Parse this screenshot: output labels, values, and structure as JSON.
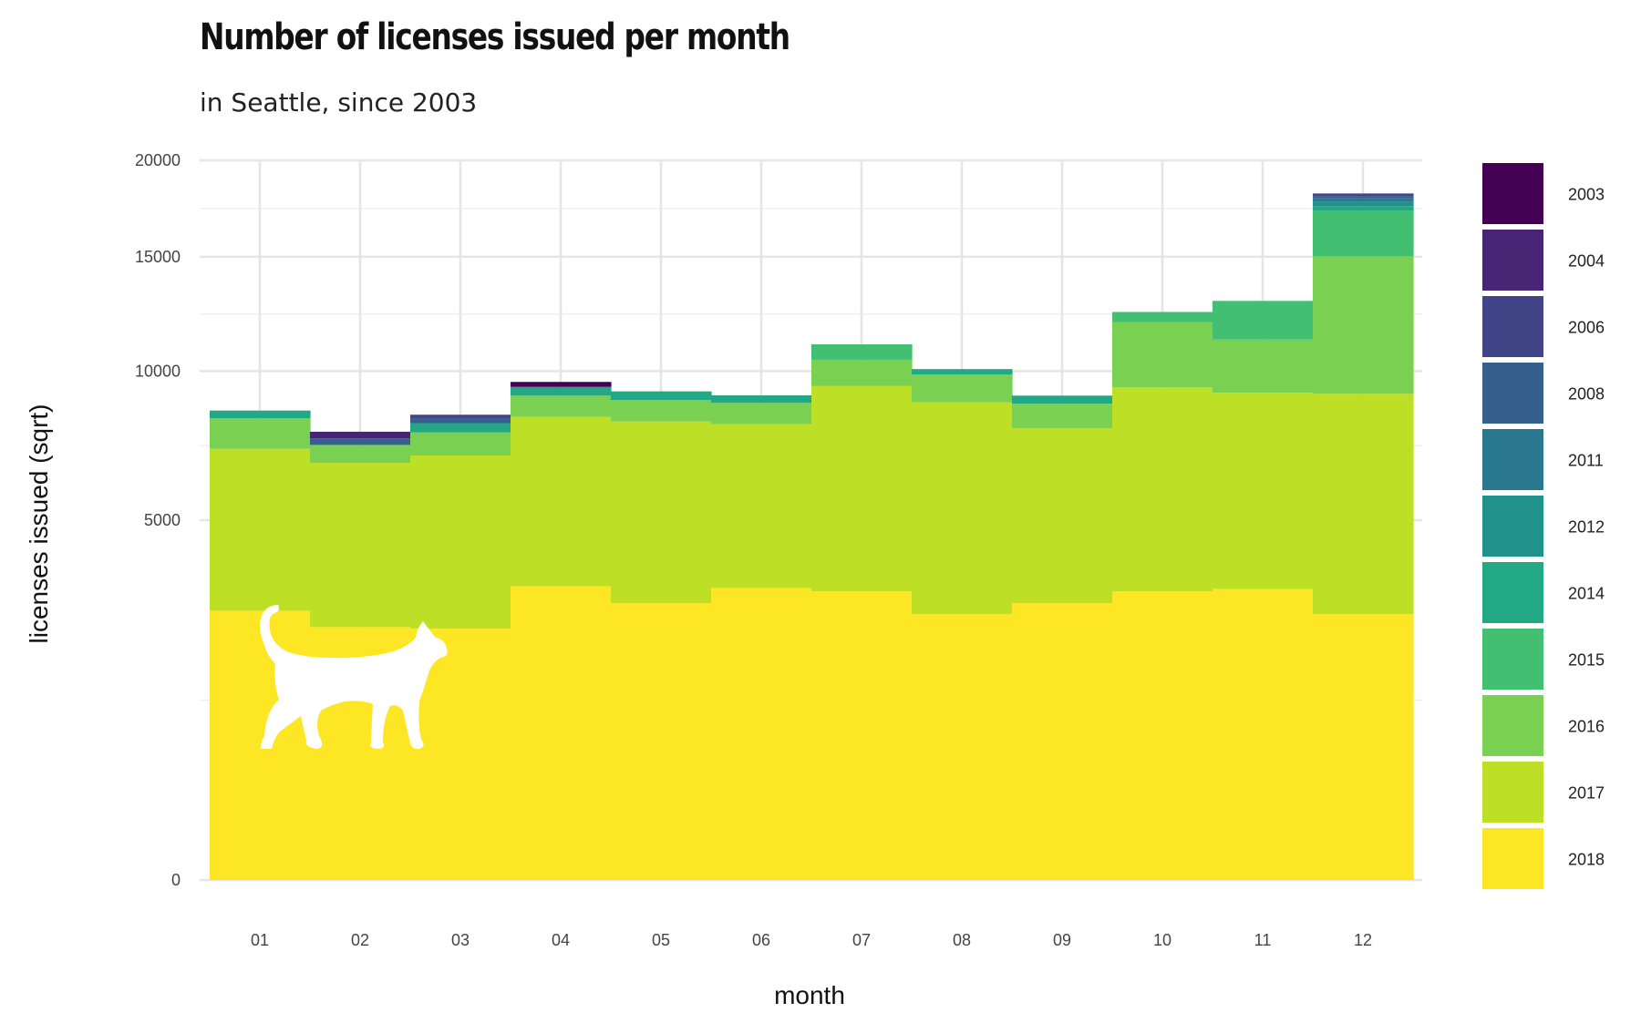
{
  "chart_data": {
    "type": "bar",
    "stacked": true,
    "title": "Number of licenses issued per month",
    "subtitle": "in Seattle, since 2003",
    "xlabel": "month",
    "ylabel": "licenses issued (sqrt)",
    "y_scale": "sqrt",
    "ylim": [
      0,
      20000
    ],
    "y_ticks": [
      0,
      5000,
      10000,
      15000,
      20000
    ],
    "grid": true,
    "legend_position": "right",
    "categories": [
      "01",
      "02",
      "03",
      "04",
      "05",
      "06",
      "07",
      "08",
      "09",
      "10",
      "11",
      "12"
    ],
    "series": [
      {
        "name": "2018",
        "color": "#fde725",
        "values": [
          2800,
          2470,
          2440,
          3330,
          2960,
          3290,
          3220,
          2730,
          2960,
          3220,
          3270,
          2730
        ]
      },
      {
        "name": "2017",
        "color": "#bddf26",
        "values": [
          4380,
          4250,
          4520,
          4950,
          5160,
          4730,
          6200,
          6080,
          4920,
          6160,
          5900,
          6400
        ]
      },
      {
        "name": "2016",
        "color": "#7ad151",
        "values": [
          1050,
          590,
          780,
          780,
          780,
          770,
          1030,
          1060,
          880,
          2630,
          2110,
          5890
        ]
      },
      {
        "name": "2015",
        "color": "#43bf71",
        "values": [
          0,
          0,
          0,
          0,
          0,
          0,
          630,
          0,
          0,
          450,
          1670,
          2290
        ]
      },
      {
        "name": "2014",
        "color": "#22a884",
        "values": [
          280,
          0,
          320,
          330,
          320,
          280,
          0,
          210,
          300,
          0,
          0,
          230
        ]
      },
      {
        "name": "2012",
        "color": "#21918c",
        "values": [
          0,
          0,
          0,
          0,
          0,
          0,
          0,
          0,
          0,
          0,
          0,
          230
        ]
      },
      {
        "name": "2011",
        "color": "#2a788e",
        "values": [
          0,
          0,
          0,
          0,
          0,
          0,
          0,
          0,
          0,
          0,
          0,
          170
        ]
      },
      {
        "name": "2008",
        "color": "#355f8d",
        "values": [
          0,
          220,
          150,
          0,
          0,
          0,
          0,
          0,
          0,
          0,
          0,
          130
        ]
      },
      {
        "name": "2006",
        "color": "#414487",
        "values": [
          0,
          0,
          150,
          0,
          0,
          0,
          0,
          0,
          0,
          0,
          0,
          130
        ]
      },
      {
        "name": "2004",
        "color": "#482475",
        "values": [
          0,
          230,
          0,
          0,
          0,
          0,
          0,
          0,
          0,
          0,
          0,
          0
        ]
      },
      {
        "name": "2003",
        "color": "#440154",
        "values": [
          0,
          0,
          0,
          190,
          0,
          0,
          0,
          0,
          0,
          0,
          0,
          0
        ]
      }
    ],
    "legend_order": [
      "2003",
      "2004",
      "2006",
      "2008",
      "2011",
      "2012",
      "2014",
      "2015",
      "2016",
      "2017",
      "2018"
    ]
  },
  "decorations": {
    "cat_silhouette_icon": "cat-silhouette-icon"
  }
}
